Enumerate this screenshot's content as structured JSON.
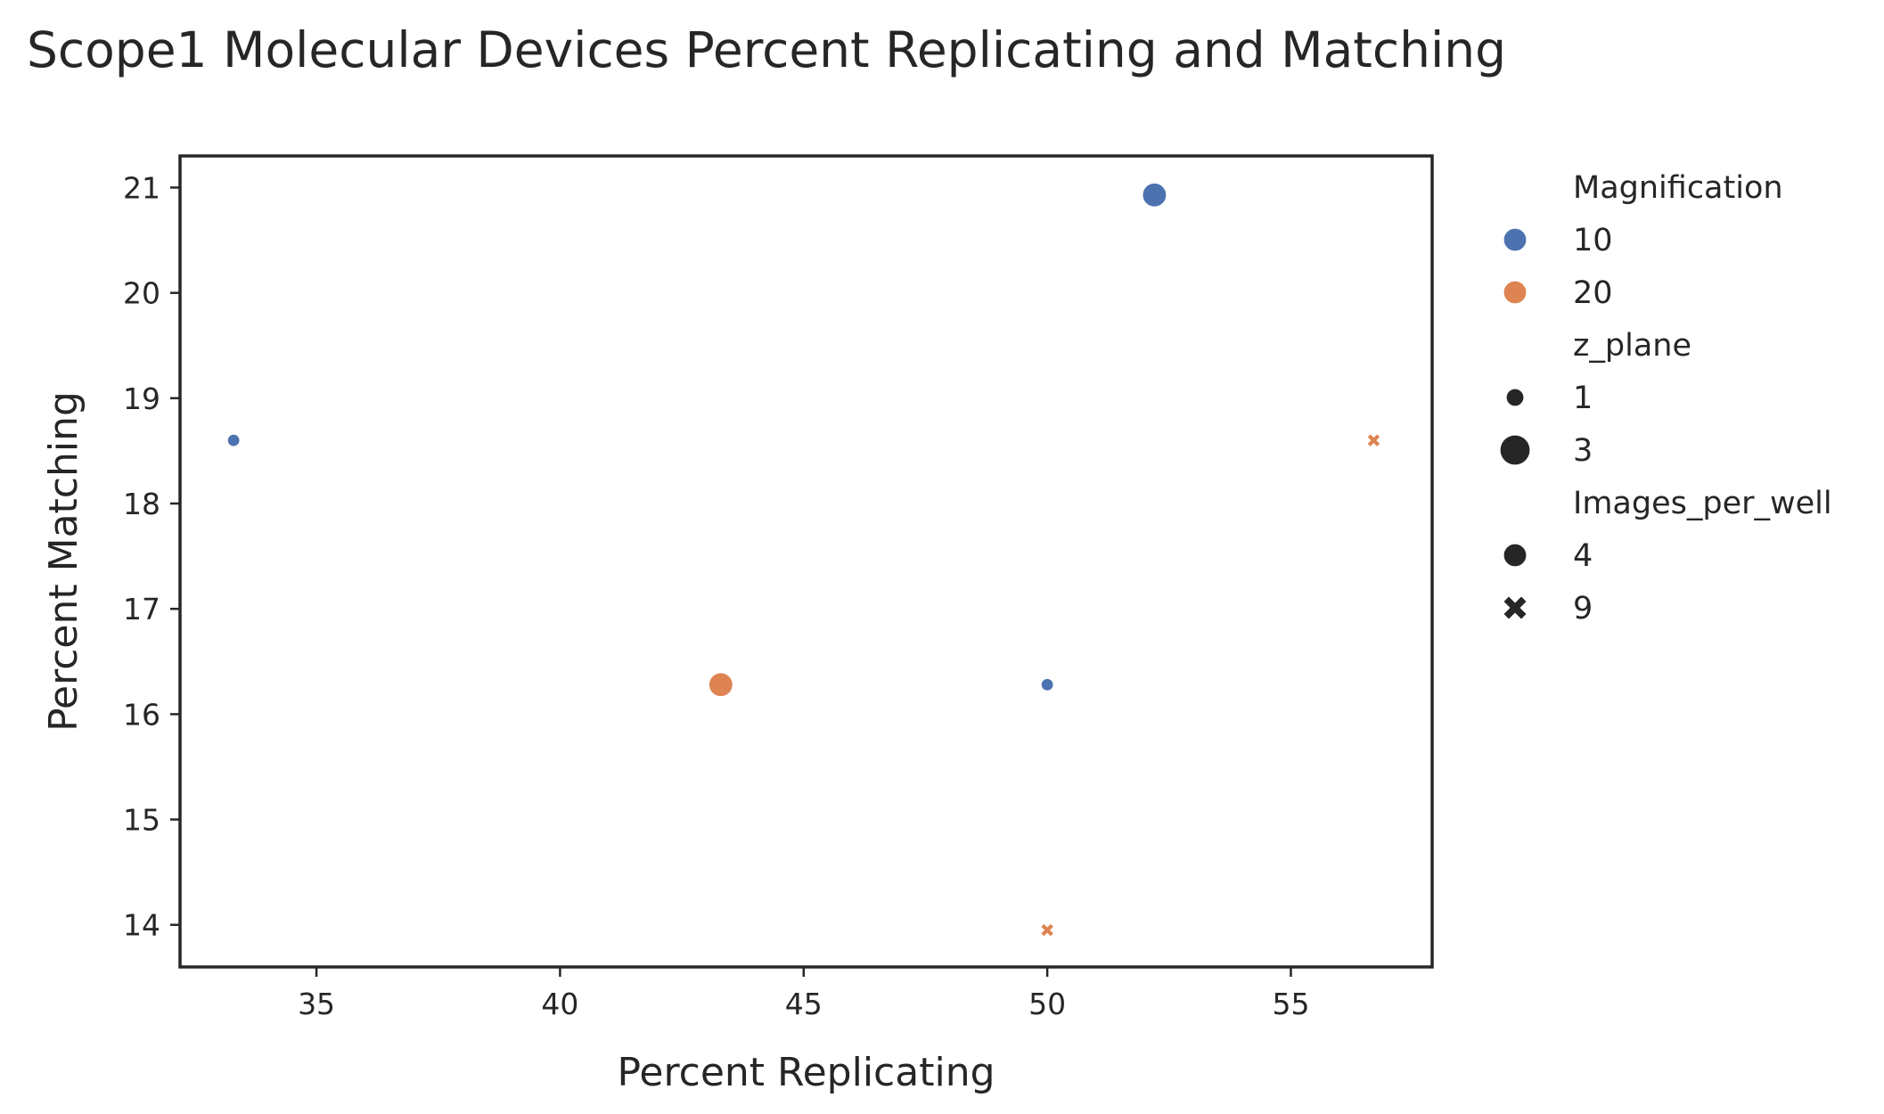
{
  "chart_data": {
    "type": "scatter",
    "title": "Scope1 Molecular Devices Percent Replicating and Matching",
    "xlabel": "Percent Replicating",
    "ylabel": "Percent Matching",
    "xlim": [
      32.2,
      57.9
    ],
    "ylim": [
      13.6,
      21.3
    ],
    "xticks": [
      35,
      40,
      45,
      50,
      55
    ],
    "yticks": [
      14,
      15,
      16,
      17,
      18,
      19,
      20,
      21
    ],
    "grid": false,
    "legend_position": "outside-right",
    "colors": {
      "10": "#4c72b0",
      "20": "#dd8452"
    },
    "points": [
      {
        "x": 33.3,
        "y": 18.6,
        "magnification": 10,
        "z_plane": 1,
        "images_per_well": 4
      },
      {
        "x": 52.2,
        "y": 20.93,
        "magnification": 10,
        "z_plane": 3,
        "images_per_well": 4
      },
      {
        "x": 50.0,
        "y": 16.28,
        "magnification": 10,
        "z_plane": 1,
        "images_per_well": 4
      },
      {
        "x": 43.3,
        "y": 16.28,
        "magnification": 20,
        "z_plane": 3,
        "images_per_well": 4
      },
      {
        "x": 56.7,
        "y": 18.6,
        "magnification": 20,
        "z_plane": 1,
        "images_per_well": 9
      },
      {
        "x": 50.0,
        "y": 13.95,
        "magnification": 20,
        "z_plane": 1,
        "images_per_well": 9
      }
    ],
    "legend": {
      "sections": [
        {
          "title": "Magnification",
          "kind": "hue",
          "entries": [
            {
              "label": "10",
              "key": "10"
            },
            {
              "label": "20",
              "key": "20"
            }
          ]
        },
        {
          "title": "z_plane",
          "kind": "size",
          "entries": [
            {
              "label": "1",
              "key": "1"
            },
            {
              "label": "3",
              "key": "3"
            }
          ]
        },
        {
          "title": "Images_per_well",
          "kind": "style",
          "entries": [
            {
              "label": "4",
              "key": "circle"
            },
            {
              "label": "9",
              "key": "x"
            }
          ]
        }
      ]
    }
  }
}
